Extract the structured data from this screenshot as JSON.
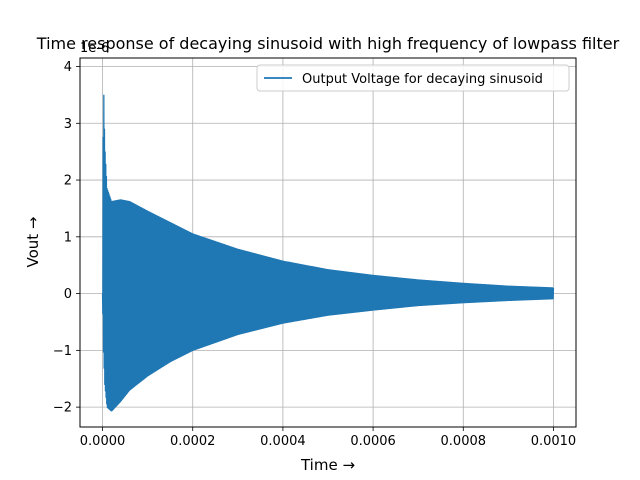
{
  "chart_data": {
    "type": "line",
    "title": "Time response of decaying sinusoid with high frequency of lowpass filter",
    "xlabel": "Time →",
    "ylabel": "Vout →",
    "y_offset_text": "1e-6",
    "xlim": [
      -5e-05,
      0.00105
    ],
    "ylim": [
      -2.35,
      4.15
    ],
    "x_ticks": [
      0.0,
      0.0002,
      0.0004,
      0.0006,
      0.0008,
      0.001
    ],
    "x_tick_labels": [
      "0.0000",
      "0.0002",
      "0.0004",
      "0.0006",
      "0.0008",
      "0.0010"
    ],
    "y_ticks": [
      -2,
      -1,
      0,
      1,
      2,
      3,
      4
    ],
    "y_tick_labels": [
      "−2",
      "−1",
      "0",
      "1",
      "2",
      "3",
      "4"
    ],
    "grid": true,
    "legend_position": "top-right",
    "series": [
      {
        "name": "Output Voltage for decaying sinusoid",
        "color": "#1f77b4",
        "envelope": {
          "x": [
            0.0,
            2e-06,
            5e-06,
            1e-05,
            2e-05,
            4e-05,
            6e-05,
            0.0001,
            0.00015,
            0.0002,
            0.0003,
            0.0004,
            0.0005,
            0.0006,
            0.0007,
            0.0008,
            0.0009,
            0.001
          ],
          "upper": [
            0.0,
            3.85,
            2.6,
            1.85,
            1.62,
            1.65,
            1.62,
            1.45,
            1.25,
            1.05,
            0.78,
            0.57,
            0.42,
            0.32,
            0.24,
            0.18,
            0.13,
            0.1
          ],
          "lower": [
            0.0,
            -1.0,
            -1.6,
            -2.0,
            -2.07,
            -1.9,
            -1.7,
            -1.45,
            -1.2,
            -1.0,
            -0.72,
            -0.52,
            -0.38,
            -0.29,
            -0.21,
            -0.16,
            -0.12,
            -0.09
          ]
        }
      }
    ]
  }
}
